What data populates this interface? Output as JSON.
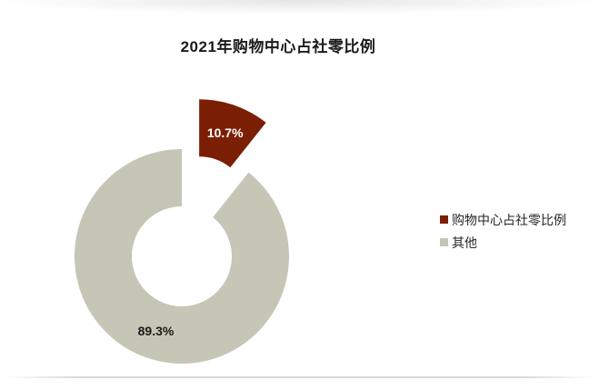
{
  "title": "2021年购物中心占社零比例",
  "chart_data": {
    "type": "pie",
    "subtype": "donut",
    "title": "2021年购物中心占社零比例",
    "categories": [
      "购物中心占社零比例",
      "其他"
    ],
    "values": [
      10.7,
      89.3
    ],
    "unit": "%",
    "slices": [
      {
        "name": "购物中心占社零比例",
        "value": 10.7,
        "label": "10.7%",
        "color": "#7A1F04",
        "label_color": "#ffffff",
        "exploded": true
      },
      {
        "name": "其他",
        "value": 89.3,
        "label": "89.3%",
        "color": "#C6C6B7",
        "label_color": "#1a1a1a",
        "exploded": false
      }
    ],
    "legend": [
      {
        "label": "购物中心占社零比例",
        "color": "#7A1F04"
      },
      {
        "label": "其他",
        "color": "#C6C6B7"
      }
    ],
    "legend_position": "right",
    "start_angle_deg": 0,
    "grid": false
  }
}
